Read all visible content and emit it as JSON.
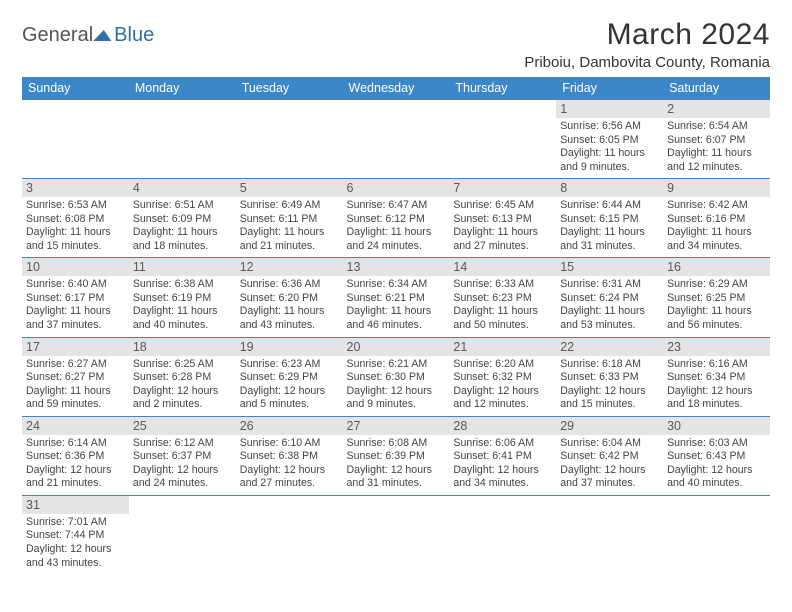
{
  "brand": {
    "part1": "General",
    "part2": "Blue"
  },
  "title": "March 2024",
  "location": "Priboiu, Dambovita County, Romania",
  "colors": {
    "header_bg": "#3b87c8",
    "header_text": "#ffffff",
    "daynum_bg": "#e4e4e4",
    "daynum_text": "#5a5a5a",
    "row_divider": "#3b87c8",
    "body_text": "#444444",
    "page_bg": "#ffffff"
  },
  "typography": {
    "title_fontsize": 30,
    "location_fontsize": 15,
    "header_fontsize": 12.5,
    "daynum_fontsize": 12.5,
    "cell_fontsize": 10.6,
    "font_family": "Arial"
  },
  "layout": {
    "columns": 7,
    "rows": 6,
    "col_width_pct": 14.28
  },
  "weekday_headers": [
    "Sunday",
    "Monday",
    "Tuesday",
    "Wednesday",
    "Thursday",
    "Friday",
    "Saturday"
  ],
  "weeks": [
    [
      null,
      null,
      null,
      null,
      null,
      {
        "n": "1",
        "sunrise": "6:56 AM",
        "sunset": "6:05 PM",
        "daylight": "11 hours and 9 minutes."
      },
      {
        "n": "2",
        "sunrise": "6:54 AM",
        "sunset": "6:07 PM",
        "daylight": "11 hours and 12 minutes."
      }
    ],
    [
      {
        "n": "3",
        "sunrise": "6:53 AM",
        "sunset": "6:08 PM",
        "daylight": "11 hours and 15 minutes."
      },
      {
        "n": "4",
        "sunrise": "6:51 AM",
        "sunset": "6:09 PM",
        "daylight": "11 hours and 18 minutes."
      },
      {
        "n": "5",
        "sunrise": "6:49 AM",
        "sunset": "6:11 PM",
        "daylight": "11 hours and 21 minutes."
      },
      {
        "n": "6",
        "sunrise": "6:47 AM",
        "sunset": "6:12 PM",
        "daylight": "11 hours and 24 minutes."
      },
      {
        "n": "7",
        "sunrise": "6:45 AM",
        "sunset": "6:13 PM",
        "daylight": "11 hours and 27 minutes."
      },
      {
        "n": "8",
        "sunrise": "6:44 AM",
        "sunset": "6:15 PM",
        "daylight": "11 hours and 31 minutes."
      },
      {
        "n": "9",
        "sunrise": "6:42 AM",
        "sunset": "6:16 PM",
        "daylight": "11 hours and 34 minutes."
      }
    ],
    [
      {
        "n": "10",
        "sunrise": "6:40 AM",
        "sunset": "6:17 PM",
        "daylight": "11 hours and 37 minutes."
      },
      {
        "n": "11",
        "sunrise": "6:38 AM",
        "sunset": "6:19 PM",
        "daylight": "11 hours and 40 minutes."
      },
      {
        "n": "12",
        "sunrise": "6:36 AM",
        "sunset": "6:20 PM",
        "daylight": "11 hours and 43 minutes."
      },
      {
        "n": "13",
        "sunrise": "6:34 AM",
        "sunset": "6:21 PM",
        "daylight": "11 hours and 46 minutes."
      },
      {
        "n": "14",
        "sunrise": "6:33 AM",
        "sunset": "6:23 PM",
        "daylight": "11 hours and 50 minutes."
      },
      {
        "n": "15",
        "sunrise": "6:31 AM",
        "sunset": "6:24 PM",
        "daylight": "11 hours and 53 minutes."
      },
      {
        "n": "16",
        "sunrise": "6:29 AM",
        "sunset": "6:25 PM",
        "daylight": "11 hours and 56 minutes."
      }
    ],
    [
      {
        "n": "17",
        "sunrise": "6:27 AM",
        "sunset": "6:27 PM",
        "daylight": "11 hours and 59 minutes."
      },
      {
        "n": "18",
        "sunrise": "6:25 AM",
        "sunset": "6:28 PM",
        "daylight": "12 hours and 2 minutes."
      },
      {
        "n": "19",
        "sunrise": "6:23 AM",
        "sunset": "6:29 PM",
        "daylight": "12 hours and 5 minutes."
      },
      {
        "n": "20",
        "sunrise": "6:21 AM",
        "sunset": "6:30 PM",
        "daylight": "12 hours and 9 minutes."
      },
      {
        "n": "21",
        "sunrise": "6:20 AM",
        "sunset": "6:32 PM",
        "daylight": "12 hours and 12 minutes."
      },
      {
        "n": "22",
        "sunrise": "6:18 AM",
        "sunset": "6:33 PM",
        "daylight": "12 hours and 15 minutes."
      },
      {
        "n": "23",
        "sunrise": "6:16 AM",
        "sunset": "6:34 PM",
        "daylight": "12 hours and 18 minutes."
      }
    ],
    [
      {
        "n": "24",
        "sunrise": "6:14 AM",
        "sunset": "6:36 PM",
        "daylight": "12 hours and 21 minutes."
      },
      {
        "n": "25",
        "sunrise": "6:12 AM",
        "sunset": "6:37 PM",
        "daylight": "12 hours and 24 minutes."
      },
      {
        "n": "26",
        "sunrise": "6:10 AM",
        "sunset": "6:38 PM",
        "daylight": "12 hours and 27 minutes."
      },
      {
        "n": "27",
        "sunrise": "6:08 AM",
        "sunset": "6:39 PM",
        "daylight": "12 hours and 31 minutes."
      },
      {
        "n": "28",
        "sunrise": "6:06 AM",
        "sunset": "6:41 PM",
        "daylight": "12 hours and 34 minutes."
      },
      {
        "n": "29",
        "sunrise": "6:04 AM",
        "sunset": "6:42 PM",
        "daylight": "12 hours and 37 minutes."
      },
      {
        "n": "30",
        "sunrise": "6:03 AM",
        "sunset": "6:43 PM",
        "daylight": "12 hours and 40 minutes."
      }
    ],
    [
      {
        "n": "31",
        "sunrise": "7:01 AM",
        "sunset": "7:44 PM",
        "daylight": "12 hours and 43 minutes."
      },
      null,
      null,
      null,
      null,
      null,
      null
    ]
  ],
  "labels": {
    "sunrise": "Sunrise:",
    "sunset": "Sunset:",
    "daylight": "Daylight:"
  }
}
